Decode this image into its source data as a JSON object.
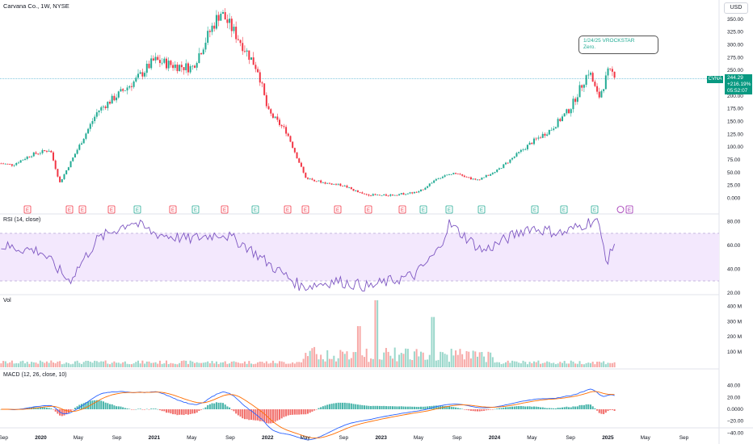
{
  "header": {
    "title": "Carvana Co., 1W, NYSE",
    "currency": "USD"
  },
  "annotation": {
    "line1": "1/24/25 VROCKSTAR",
    "line2": "Zero."
  },
  "price_badge": {
    "ticker": "CVNA",
    "price": "244.29",
    "change": "+216.19%",
    "countdown": "05:52:07"
  },
  "panes": {
    "rsi_title": "RSI (14, close)",
    "vol_title": "Vol",
    "macd_title": "MACD (12, 26, close, 10)"
  },
  "colors": {
    "up": "#22ab94",
    "down": "#f23645",
    "rsi_line": "#7e57c2",
    "rsi_band": "#f3e8fd",
    "macd_line": "#2962ff",
    "signal_line": "#ff6d00",
    "last_price_line": "#5fb8d6"
  },
  "earnings_markers": [
    "E",
    "E",
    "E",
    "E",
    "E",
    "E",
    "E",
    "E",
    "E",
    "E",
    "E",
    "E",
    "E",
    "E",
    "E",
    "E",
    "E",
    "E",
    "E",
    "E"
  ],
  "chart_data": [
    {
      "type": "candlestick",
      "title": "Carvana Co., 1W, NYSE",
      "x_tick_labels": [
        "Sep",
        "2020",
        "May",
        "Sep",
        "2021",
        "May",
        "Sep",
        "2022",
        "May",
        "Sep",
        "2023",
        "May",
        "Sep",
        "2024",
        "May",
        "Sep",
        "2025",
        "May",
        "Sep"
      ],
      "y_tick_labels": [
        "0.000",
        "25.00",
        "50.00",
        "75.00",
        "100.00",
        "125.00",
        "150.00",
        "175.00",
        "200.00",
        "225.00",
        "250.00",
        "275.00",
        "300.00",
        "325.00",
        "350.00"
      ],
      "ylim": [
        -15,
        375
      ],
      "last_price": 244.29,
      "close_path": [
        [
          "2019-08",
          70
        ],
        [
          "2019-10",
          65
        ],
        [
          "2019-12",
          85
        ],
        [
          "2020-02",
          95
        ],
        [
          "2020-03",
          30
        ],
        [
          "2020-05",
          100
        ],
        [
          "2020-07",
          170
        ],
        [
          "2020-09",
          200
        ],
        [
          "2020-11",
          230
        ],
        [
          "2021-01",
          270
        ],
        [
          "2021-03",
          260
        ],
        [
          "2021-05",
          255
        ],
        [
          "2021-07",
          330
        ],
        [
          "2021-08",
          365
        ],
        [
          "2021-10",
          310
        ],
        [
          "2021-12",
          250
        ],
        [
          "2022-01",
          170
        ],
        [
          "2022-03",
          130
        ],
        [
          "2022-05",
          40
        ],
        [
          "2022-07",
          30
        ],
        [
          "2022-09",
          25
        ],
        [
          "2022-11",
          8
        ],
        [
          "2023-01",
          5
        ],
        [
          "2023-03",
          8
        ],
        [
          "2023-05",
          12
        ],
        [
          "2023-07",
          40
        ],
        [
          "2023-09",
          50
        ],
        [
          "2023-11",
          35
        ],
        [
          "2024-01",
          50
        ],
        [
          "2024-03",
          80
        ],
        [
          "2024-05",
          110
        ],
        [
          "2024-07",
          135
        ],
        [
          "2024-09",
          175
        ],
        [
          "2024-11",
          250
        ],
        [
          "2024-12",
          195
        ],
        [
          "2025-01",
          244.29
        ]
      ]
    },
    {
      "type": "line",
      "title": "RSI (14, close)",
      "y_tick_labels": [
        "20.00",
        "40.00",
        "60.00",
        "80.00"
      ],
      "ylim": [
        15,
        85
      ],
      "band": [
        30,
        70
      ],
      "values": [
        [
          2019.6,
          60
        ],
        [
          2020.0,
          55
        ],
        [
          2020.25,
          30
        ],
        [
          2020.5,
          65
        ],
        [
          2020.8,
          80
        ],
        [
          2021.0,
          70
        ],
        [
          2021.3,
          65
        ],
        [
          2021.6,
          70
        ],
        [
          2021.8,
          60
        ],
        [
          2022.0,
          45
        ],
        [
          2022.3,
          25
        ],
        [
          2022.6,
          30
        ],
        [
          2022.9,
          25
        ],
        [
          2023.0,
          28
        ],
        [
          2023.3,
          35
        ],
        [
          2023.5,
          55
        ],
        [
          2023.6,
          78
        ],
        [
          2023.9,
          55
        ],
        [
          2024.0,
          60
        ],
        [
          2024.3,
          75
        ],
        [
          2024.6,
          70
        ],
        [
          2024.9,
          82
        ],
        [
          2025.0,
          45
        ],
        [
          2025.05,
          62
        ]
      ]
    },
    {
      "type": "bar",
      "title": "Vol",
      "y_tick_labels": [
        "100 M",
        "200 M",
        "300 M",
        "400 M"
      ],
      "ylim": [
        0,
        450
      ]
    },
    {
      "type": "line",
      "title": "MACD (12, 26, close, 10)",
      "y_tick_labels": [
        "−40.00",
        "−20.00",
        "0.0000",
        "20.00",
        "40.00"
      ],
      "ylim": [
        -50,
        45
      ],
      "series": [
        {
          "values": []
        },
        {
          "values": []
        }
      ]
    }
  ]
}
